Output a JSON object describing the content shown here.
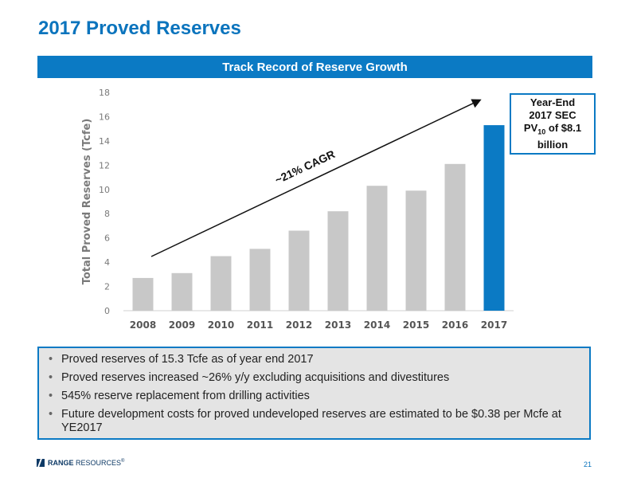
{
  "slide": {
    "title": "2017 Proved Reserves",
    "banner": "Track Record of Reserve Growth",
    "page_number": "21",
    "brand_color": "#0b7ac4"
  },
  "callout": {
    "line1": "Year-End",
    "line2": "2017 SEC",
    "line3_prefix": "PV",
    "line3_sub": "10",
    "line3_suffix": " of $8.1",
    "line4": "billion"
  },
  "bullets": [
    "Proved reserves of 15.3 Tcfe as of year end 2017",
    "Proved reserves increased ~26% y/y excluding acquisitions and divestitures",
    "545% reserve replacement from drilling activities",
    "Future development costs for proved undeveloped reserves are estimated to be $0.38 per Mcfe at YE2017"
  ],
  "logo": {
    "name_bold": "RANGE",
    "name_rest": " RESOURCES",
    "mark": "®"
  },
  "chart_data": {
    "type": "bar",
    "categories": [
      "2008",
      "2009",
      "2010",
      "2011",
      "2012",
      "2013",
      "2014",
      "2015",
      "2016",
      "2017"
    ],
    "values": [
      2.7,
      3.1,
      4.5,
      5.1,
      6.6,
      8.2,
      10.3,
      9.9,
      12.1,
      15.3
    ],
    "ylabel": "Total Proved Reserves (Tcfe)",
    "ylim": [
      0,
      18
    ],
    "yticks": [
      0,
      2,
      4,
      6,
      8,
      10,
      12,
      14,
      16,
      18
    ],
    "annotation": "~21% CAGR",
    "bar_color": "#c8c8c8",
    "highlight_color": "#0b7ac4",
    "highlight_category": "2017",
    "grid": false
  }
}
